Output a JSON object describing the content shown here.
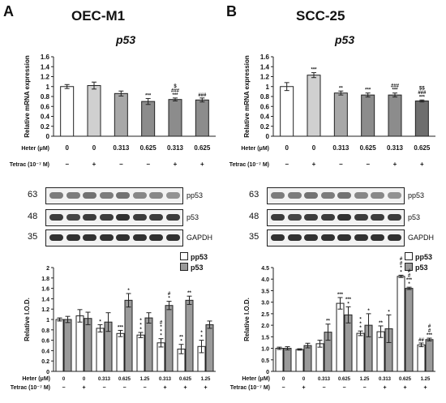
{
  "panels": [
    {
      "id": "a",
      "letter": "A",
      "title": "OEC-M1",
      "gene_label": "p53",
      "mrna": {
        "type": "bar",
        "ylabel": "Relative mRNA expression",
        "ylim": [
          0,
          1.6
        ],
        "yticks": [
          "0",
          "0.2",
          "0.4",
          "0.6",
          "0.8",
          "1",
          "1.2",
          "1.4",
          "1.6"
        ],
        "values": [
          1.0,
          1.02,
          0.86,
          0.7,
          0.74,
          0.73
        ],
        "errors": [
          0.04,
          0.07,
          0.05,
          0.06,
          0.03,
          0.04
        ],
        "colors": [
          "#ffffff",
          "#d0d0d0",
          "#a8a8a8",
          "#8c8c8c",
          "#8c8c8c",
          "#8c8c8c"
        ],
        "annotations": [
          "",
          "",
          "",
          "***",
          "$\n###\n***",
          "###"
        ]
      },
      "treatment": {
        "heter_label": "Heter (μM)",
        "heter_values": [
          "0",
          "0",
          "0.313",
          "0.625",
          "0.313",
          "0.625"
        ],
        "tetrac_label": "Tetrac (10⁻⁷ M)",
        "tetrac_values": [
          "−",
          "+",
          "−",
          "−",
          "+",
          "+"
        ]
      },
      "blots": [
        {
          "mw": "63",
          "label": "pp53"
        },
        {
          "mw": "48",
          "label": "p53"
        },
        {
          "mw": "35",
          "label": "GAPDH"
        }
      ],
      "densitometry": {
        "type": "bar",
        "ylabel": "Relative I.O.D.",
        "ylim": [
          0,
          2.0
        ],
        "yticks": [
          "0",
          "0.2",
          "0.4",
          "0.6",
          "0.8",
          "1",
          "1.2",
          "1.4",
          "1.6",
          "1.8",
          "2"
        ],
        "series": [
          {
            "name": "pp53",
            "color": "#ffffff",
            "values": [
              1.0,
              1.07,
              0.83,
              0.73,
              0.7,
              0.55,
              0.43,
              0.48
            ],
            "errors": [
              0.03,
              0.12,
              0.07,
              0.06,
              0.05,
              0.08,
              0.09,
              0.12
            ],
            "annotations": [
              "",
              "",
              "*",
              "***",
              "*\n*\n*",
              "#\n*\n*\n*",
              "**\n*",
              "*\n*"
            ]
          },
          {
            "name": "p53",
            "color": "#9a9a9a",
            "values": [
              1.0,
              1.02,
              0.95,
              1.37,
              1.03,
              1.27,
              1.37,
              0.9
            ],
            "errors": [
              0.06,
              0.12,
              0.18,
              0.13,
              0.1,
              0.08,
              0.08,
              0.07
            ],
            "annotations": [
              "",
              "",
              "",
              "*",
              "",
              "#\n*",
              "**",
              ""
            ]
          }
        ],
        "heter_label": "Heter (μM)",
        "heter_values": [
          "0",
          "0",
          "0.313",
          "0.625",
          "1.25",
          "0.313",
          "0.625",
          "1.25"
        ],
        "tetrac_label": "Tetrac (10⁻⁷ M)",
        "tetrac_values": [
          "−",
          "+",
          "−",
          "−",
          "−",
          "+",
          "+",
          "+"
        ]
      }
    },
    {
      "id": "b",
      "letter": "B",
      "title": "SCC-25",
      "gene_label": "p53",
      "mrna": {
        "type": "bar",
        "ylabel": "Relative mRNA expression",
        "ylim": [
          0,
          1.6
        ],
        "yticks": [
          "0",
          "0.2",
          "0.4",
          "0.6",
          "0.8",
          "1",
          "1.2",
          "1.4",
          "1.6"
        ],
        "values": [
          1.0,
          1.23,
          0.87,
          0.83,
          0.83,
          0.71
        ],
        "errors": [
          0.08,
          0.05,
          0.04,
          0.04,
          0.04,
          0.02
        ],
        "colors": [
          "#ffffff",
          "#d0d0d0",
          "#a8a8a8",
          "#8c8c8c",
          "#8c8c8c",
          "#6e6e6e"
        ],
        "annotations": [
          "",
          "***",
          "**",
          "***",
          "###\n***",
          "$$\n###\n***"
        ]
      },
      "treatment": {
        "heter_label": "Heter (μM)",
        "heter_values": [
          "0",
          "0",
          "0.313",
          "0.625",
          "0.313",
          "0.625"
        ],
        "tetrac_label": "Tetrac (10⁻⁷ M)",
        "tetrac_values": [
          "−",
          "+",
          "−",
          "−",
          "+",
          "+"
        ]
      },
      "blots": [
        {
          "mw": "63",
          "label": "pp53"
        },
        {
          "mw": "48",
          "label": "p53"
        },
        {
          "mw": "35",
          "label": "GAPDH"
        }
      ],
      "densitometry": {
        "type": "bar",
        "ylabel": "Relative I.O.D.",
        "ylim": [
          0,
          4.5
        ],
        "yticks": [
          "0",
          "0.5",
          "1.0",
          "1.5",
          "2.0",
          "2.5",
          "3.0",
          "3.5",
          "4.0",
          "4.5"
        ],
        "series": [
          {
            "name": "pp53",
            "color": "#ffffff",
            "values": [
              1.0,
              0.95,
              1.2,
              2.95,
              1.65,
              1.72,
              4.12,
              1.15
            ],
            "errors": [
              0.05,
              0.03,
              0.15,
              0.25,
              0.1,
              0.25,
              0.05,
              0.08
            ],
            "annotations": [
              "",
              "",
              "",
              "***",
              "*\n*\n*",
              "**",
              "#\n#\n*\n*",
              "##"
            ]
          },
          {
            "name": "p53",
            "color": "#9a9a9a",
            "values": [
              1.0,
              1.12,
              1.7,
              2.45,
              2.0,
              1.85,
              3.6,
              1.38
            ],
            "errors": [
              0.07,
              0.1,
              0.35,
              0.35,
              0.5,
              0.6,
              0.05,
              0.06
            ],
            "annotations": [
              "",
              "",
              "**",
              "***\n*",
              "*",
              "*",
              "#\n#\n***\n*",
              "#\n#\n***"
            ]
          }
        ],
        "heter_label": "Heter (μM)",
        "heter_values": [
          "0",
          "0",
          "0.313",
          "0.625",
          "1.25",
          "0.313",
          "0.625",
          "1.25"
        ],
        "tetrac_label": "Tetrac (10⁻⁷ M)",
        "tetrac_values": [
          "−",
          "+",
          "−",
          "−",
          "−",
          "+",
          "+",
          "+"
        ]
      }
    }
  ]
}
